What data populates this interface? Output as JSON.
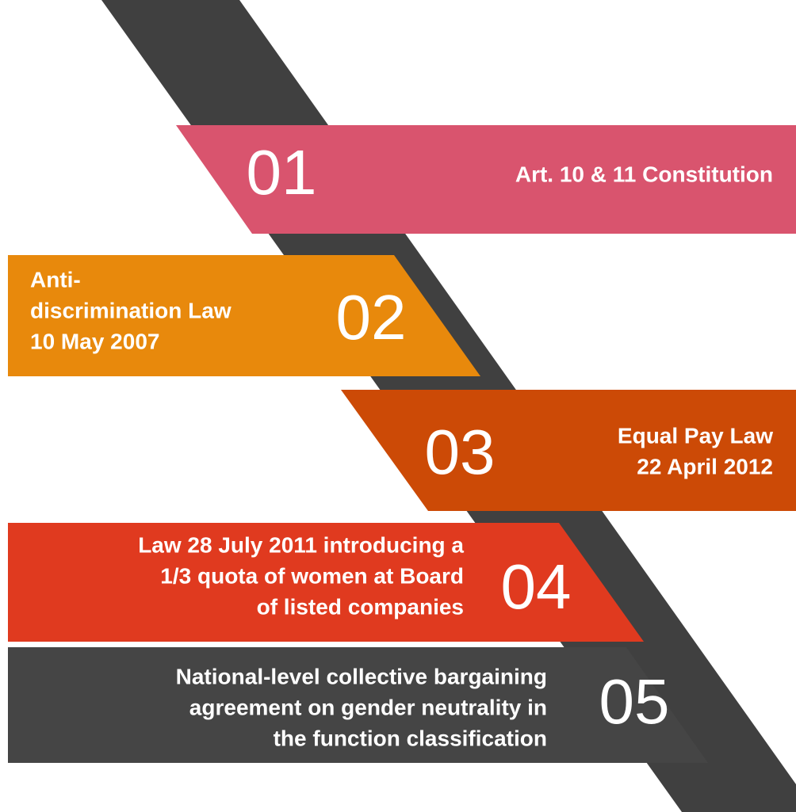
{
  "items": [
    {
      "number": "01",
      "lines": [
        "Art. 10 & 11 Constitution"
      ]
    },
    {
      "number": "02",
      "lines": [
        "Anti-",
        "discrimination Law",
        "10 May 2007"
      ]
    },
    {
      "number": "03",
      "lines": [
        "Equal Pay Law",
        "22 April 2012"
      ]
    },
    {
      "number": "04",
      "lines": [
        "Law 28 July 2011 introducing a",
        "1/3 quota of women at Board",
        "of listed companies"
      ]
    },
    {
      "number": "05",
      "lines": [
        "National-level collective bargaining",
        "agreement on gender neutrality in",
        "the function classification"
      ]
    }
  ]
}
